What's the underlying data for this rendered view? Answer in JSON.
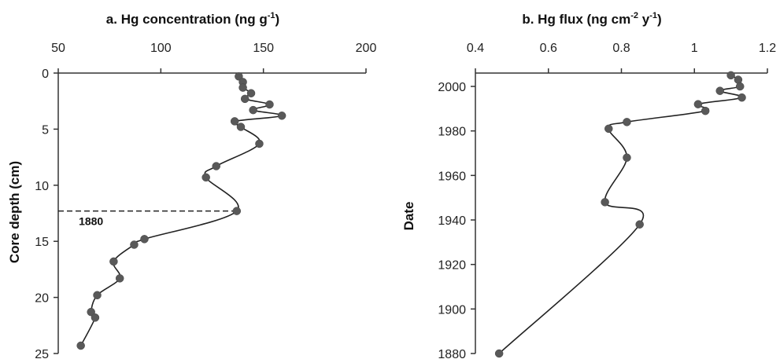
{
  "chart_data": [
    {
      "type": "line",
      "title_main": "a. Hg concentration (ng g",
      "title_sup": "-1",
      "title_end": ")",
      "ylabel": "Core depth (cm)",
      "xlim": [
        50,
        200
      ],
      "ylim": [
        0,
        25
      ],
      "y_reversed": true,
      "x_axis_position": "top",
      "xticks": [
        50,
        100,
        150,
        200
      ],
      "yticks": [
        0,
        5,
        10,
        15,
        20,
        25
      ],
      "series": [
        {
          "x": [
            138,
            140,
            140,
            144,
            141,
            153,
            145,
            159,
            136,
            139,
            148,
            127,
            122,
            137,
            92,
            87,
            77,
            80,
            69,
            66,
            68,
            61
          ],
          "y": [
            0.3,
            0.8,
            1.3,
            1.8,
            2.3,
            2.8,
            3.3,
            3.8,
            4.3,
            4.8,
            6.3,
            8.3,
            9.3,
            12.3,
            14.8,
            15.3,
            16.8,
            18.3,
            19.8,
            21.3,
            21.8,
            24.3
          ]
        }
      ],
      "annotation": {
        "text": "1880",
        "line_y": 12.3,
        "line_x_range": [
          50,
          137
        ]
      }
    },
    {
      "type": "line",
      "title_main": "b. Hg flux (ng cm",
      "title_sup1": "-2",
      "title_mid": " y",
      "title_sup2": "-1",
      "title_end": ")",
      "ylabel": "Date",
      "xlim": [
        0.4,
        1.2
      ],
      "ylim": [
        1880,
        2006
      ],
      "x_axis_position": "top",
      "xticks": [
        "0.4",
        "0.6",
        "0.8",
        "1",
        "1.2"
      ],
      "yticks": [
        1880,
        1900,
        1920,
        1940,
        1960,
        1980,
        2000
      ],
      "series": [
        {
          "x": [
            1.1,
            1.12,
            1.125,
            1.07,
            1.13,
            1.01,
            1.03,
            0.815,
            0.765,
            0.815,
            0.755,
            0.85,
            0.465
          ],
          "y": [
            2005,
            2003,
            2000,
            1998,
            1995,
            1992,
            1989,
            1984,
            1981,
            1968,
            1948,
            1938,
            1880
          ]
        }
      ]
    }
  ]
}
